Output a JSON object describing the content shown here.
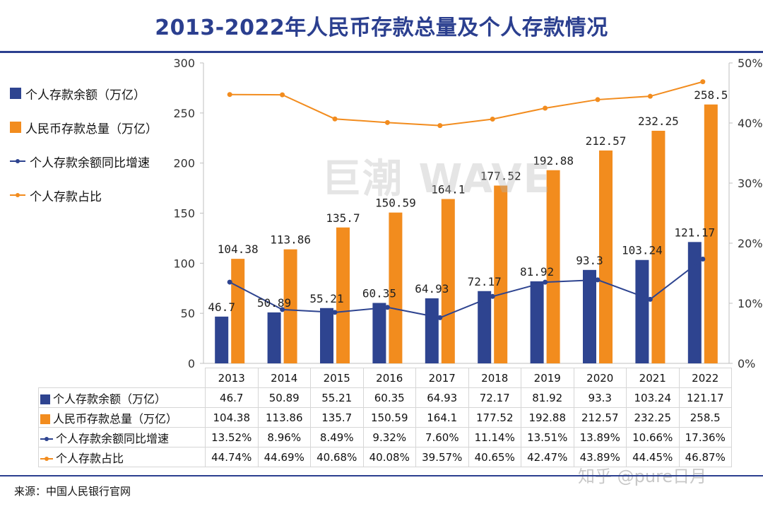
{
  "title": "2013-2022年人民币存款总量及个人存款情况",
  "source": "来源：中国人民银行官网",
  "watermarks": {
    "center": "巨潮 WAVE",
    "corner": "知乎 @pure日月"
  },
  "colors": {
    "personal_bar": "#2e4490",
    "total_bar": "#f28c1e",
    "growth_line": "#2e4490",
    "share_line": "#f28c1e",
    "title": "#2b3f8f"
  },
  "chart_data": {
    "type": "bar",
    "categories": [
      "2013",
      "2014",
      "2015",
      "2016",
      "2017",
      "2018",
      "2019",
      "2020",
      "2021",
      "2022"
    ],
    "series": [
      {
        "name": "个人存款余额（万亿）",
        "kind": "bar",
        "axis": "left",
        "values": [
          46.7,
          50.89,
          55.21,
          60.35,
          64.93,
          72.17,
          81.92,
          93.3,
          103.24,
          121.17
        ],
        "labels": [
          "46.7",
          "50.89",
          "55.21",
          "60.35",
          "64.93",
          "72.17",
          "81.92",
          "93.3",
          "103.24",
          "121.17"
        ]
      },
      {
        "name": "人民币存款总量（万亿）",
        "kind": "bar",
        "axis": "left",
        "values": [
          104.38,
          113.86,
          135.7,
          150.59,
          164.1,
          177.52,
          192.88,
          212.57,
          232.25,
          258.5
        ],
        "labels": [
          "104.38",
          "113.86",
          "135.7",
          "150.59",
          "164.1",
          "177.52",
          "192.88",
          "212.57",
          "232.25",
          "258.5"
        ]
      },
      {
        "name": "个人存款余额同比增速",
        "kind": "line",
        "axis": "right",
        "values": [
          13.52,
          8.96,
          8.49,
          9.32,
          7.6,
          11.14,
          13.51,
          13.89,
          10.66,
          17.36
        ],
        "labels": [
          "13.52%",
          "8.96%",
          "8.49%",
          "9.32%",
          "7.60%",
          "11.14%",
          "13.51%",
          "13.89%",
          "10.66%",
          "17.36%"
        ]
      },
      {
        "name": "个人存款占比",
        "kind": "line",
        "axis": "right",
        "values": [
          44.74,
          44.69,
          40.68,
          40.08,
          39.57,
          40.65,
          42.47,
          43.89,
          44.45,
          46.87
        ],
        "labels": [
          "44.74%",
          "44.69%",
          "40.68%",
          "40.08%",
          "39.57%",
          "40.65%",
          "42.47%",
          "43.89%",
          "44.45%",
          "46.87%"
        ]
      }
    ],
    "y_left": {
      "ylim": [
        0,
        300
      ],
      "ticks": [
        0,
        50,
        100,
        150,
        200,
        250,
        300
      ],
      "tick_labels": [
        "0",
        "50",
        "100",
        "150",
        "200",
        "250",
        "300"
      ]
    },
    "y_right": {
      "ylim": [
        0,
        50
      ],
      "ticks": [
        0,
        10,
        20,
        30,
        40,
        50
      ],
      "tick_labels": [
        "0%",
        "10%",
        "20%",
        "30%",
        "40%",
        "50%"
      ]
    },
    "grid": false,
    "legend_position": "left",
    "data_table": true
  }
}
